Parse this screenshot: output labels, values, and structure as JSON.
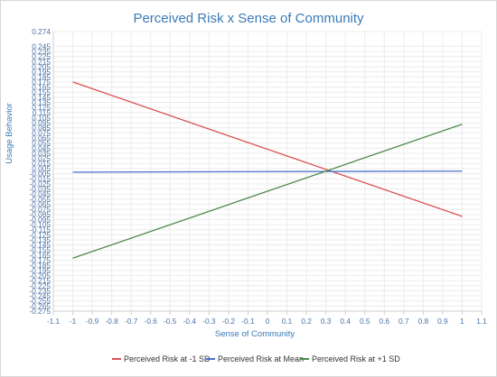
{
  "chart_data": {
    "type": "line",
    "title": "Perceived Risk x Sense of Community",
    "xlabel": "Sense of Community",
    "ylabel": "Usage Behavior",
    "xlim": [
      -1.1,
      1.1
    ],
    "ylim": [
      -0.275,
      0.274
    ],
    "x_ticks": [
      "-1.1",
      "-1",
      "-0.9",
      "-0.8",
      "-0.7",
      "-0.6",
      "-0.5",
      "-0.4",
      "-0.3",
      "-0.2",
      "-0.1",
      "0",
      "0.1",
      "0.2",
      "0.3",
      "0.4",
      "0.5",
      "0.6",
      "0.7",
      "0.8",
      "0.9",
      "1",
      "1.1"
    ],
    "y_ticks": [
      "0.274",
      "0.245",
      "0.235",
      "0.225",
      "0.215",
      "0.205",
      "0.195",
      "0.185",
      "0.175",
      "0.165",
      "0.155",
      "0.145",
      "0.135",
      "0.125",
      "0.115",
      "0.105",
      "0.095",
      "0.085",
      "0.075",
      "0.065",
      "0.055",
      "0.045",
      "0.035",
      "0.025",
      "0.015",
      "0.005",
      "-0.005",
      "-0.015",
      "-0.025",
      "-0.035",
      "-0.045",
      "-0.055",
      "-0.065",
      "-0.075",
      "-0.085",
      "-0.095",
      "-0.105",
      "-0.115",
      "-0.125",
      "-0.135",
      "-0.145",
      "-0.155",
      "-0.165",
      "-0.175",
      "-0.185",
      "-0.195",
      "-0.205",
      "-0.215",
      "-0.225",
      "-0.235",
      "-0.245",
      "-0.255",
      "-0.265",
      "-0.275"
    ],
    "grid": true,
    "legend_position": "bottom",
    "series": [
      {
        "name": "Perceived Risk at -1 SD",
        "color": "#d9534f",
        "x": [
          -1,
          1
        ],
        "y": [
          0.175,
          -0.089
        ]
      },
      {
        "name": "Perceived Risk at Mean",
        "color": "#4a6fd0",
        "x": [
          -1,
          1
        ],
        "y": [
          -0.002,
          0.0
        ]
      },
      {
        "name": "Perceived Risk at +1 SD",
        "color": "#4c8a4c",
        "x": [
          -1,
          1
        ],
        "y": [
          -0.171,
          0.092
        ]
      }
    ]
  }
}
